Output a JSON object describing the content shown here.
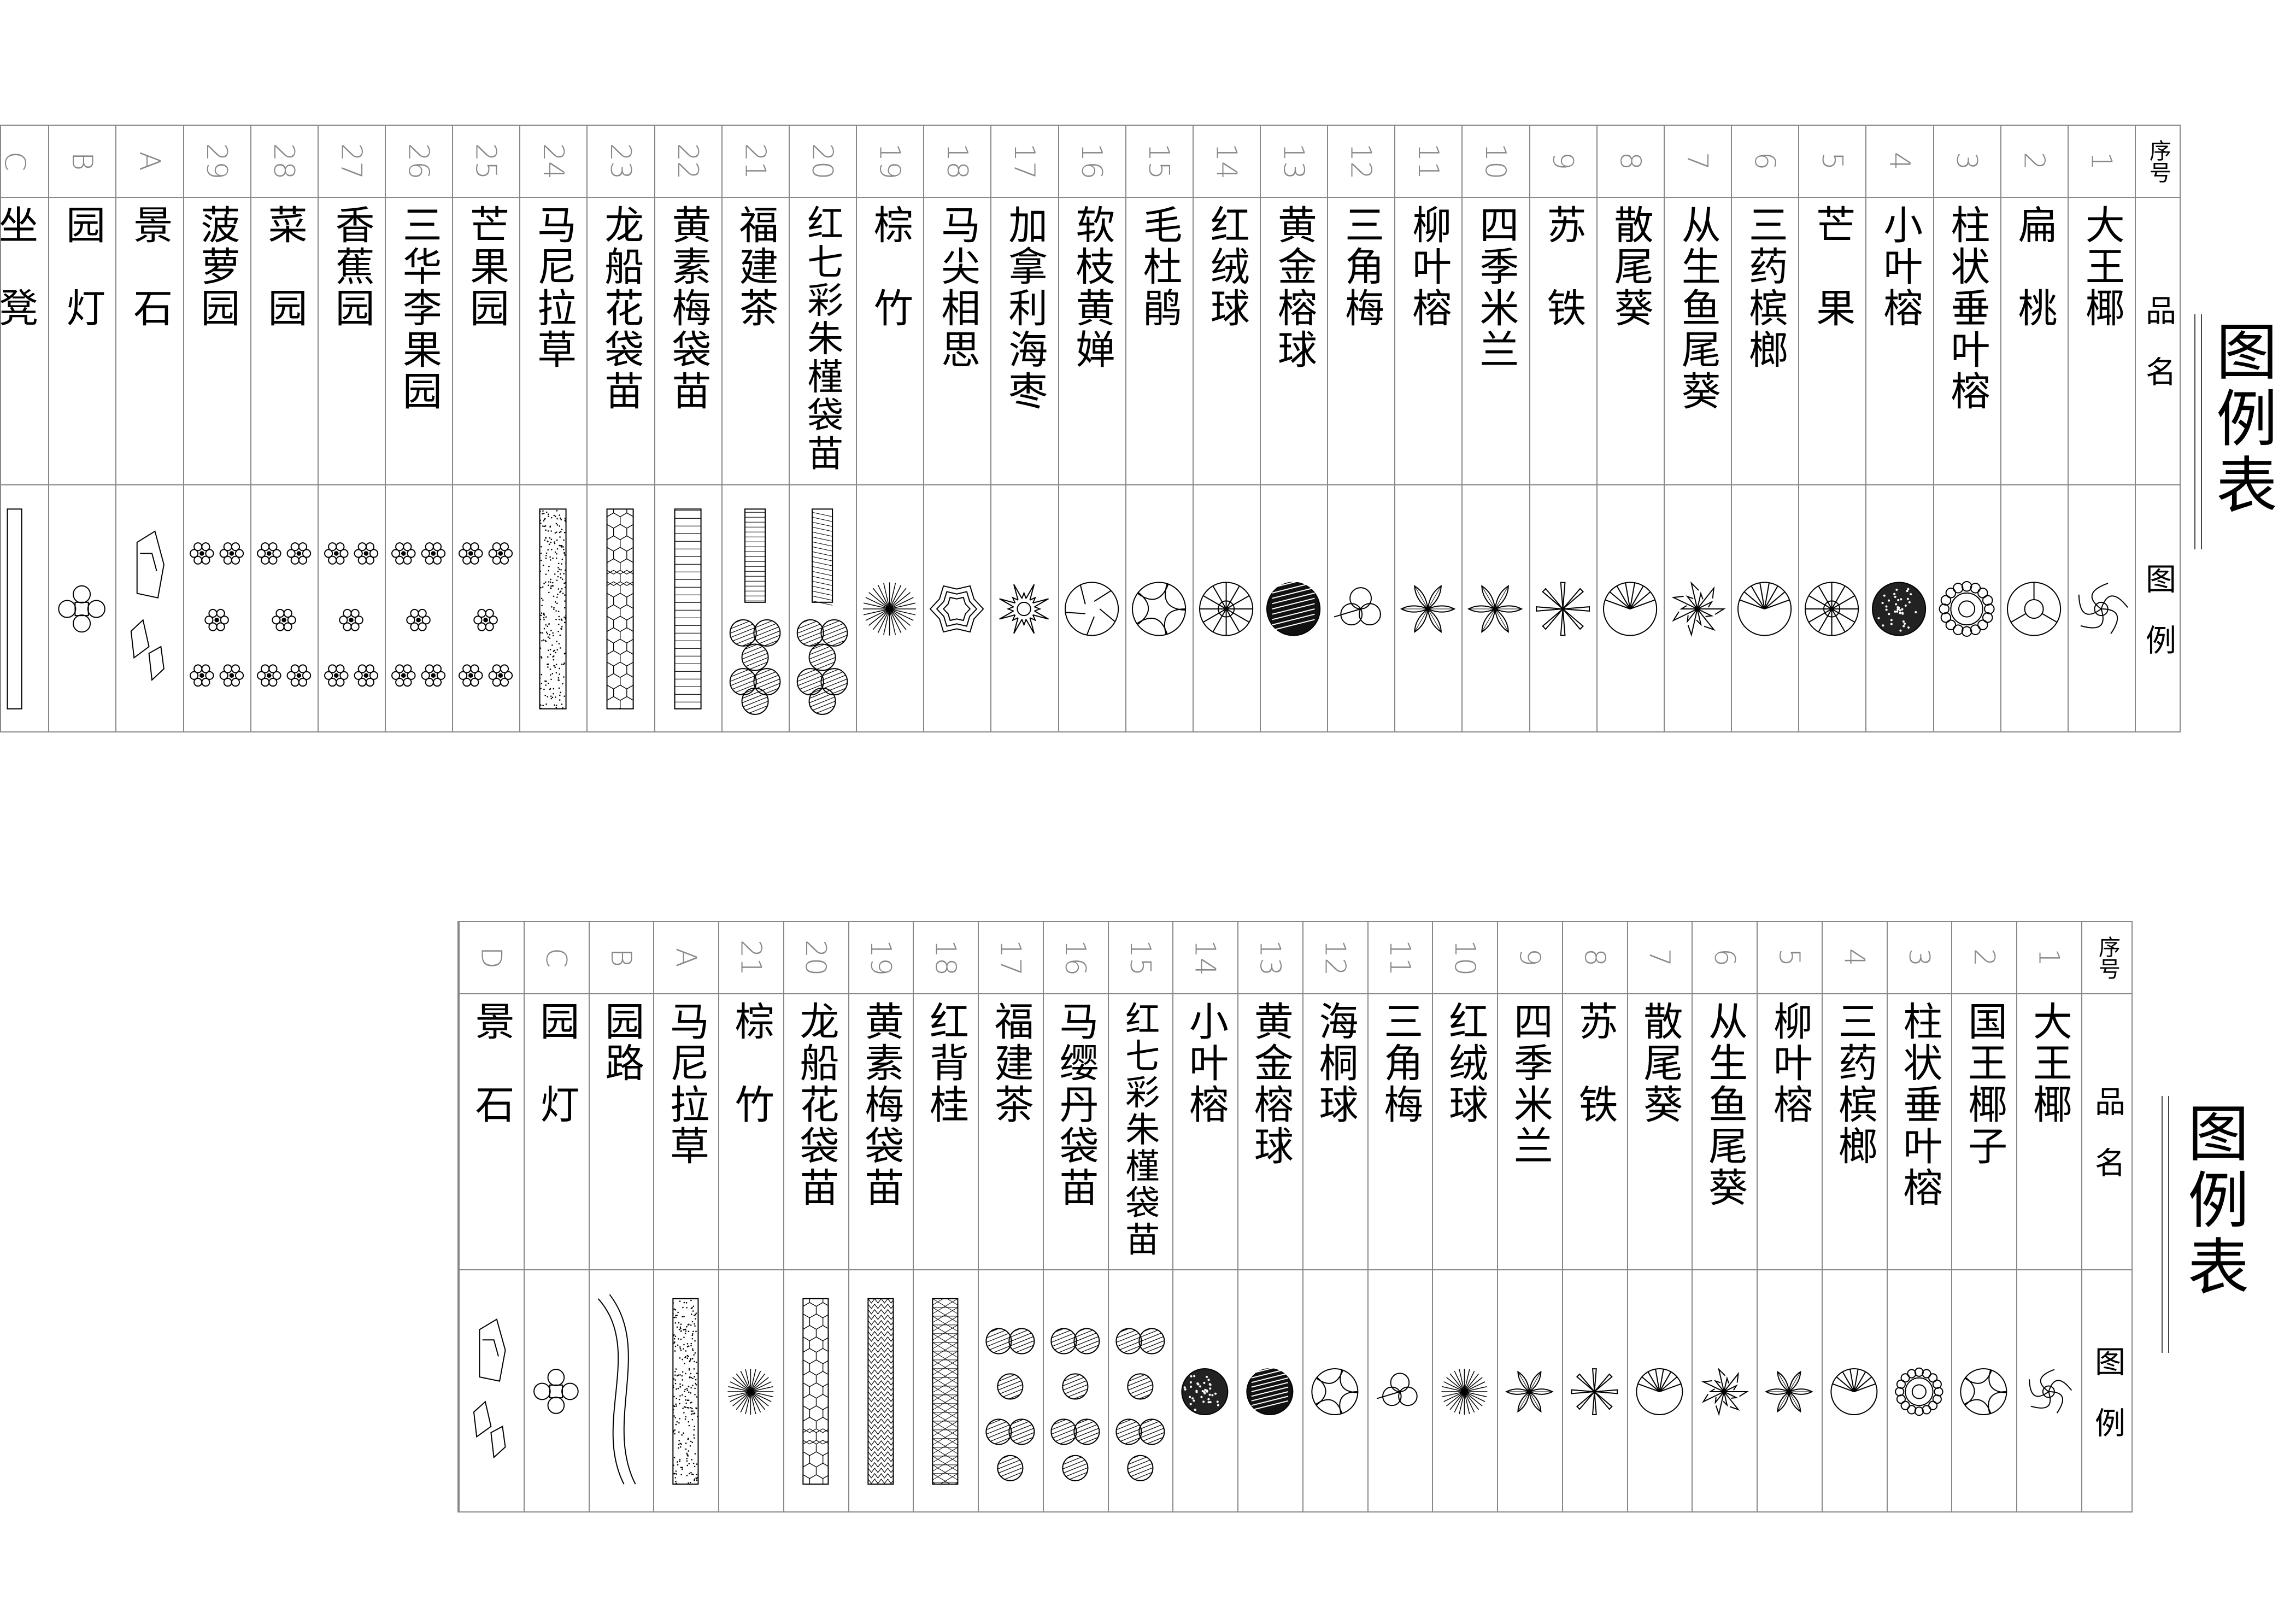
{
  "table1": {
    "title": "图例表",
    "headers": {
      "num": "序号",
      "name": "品　名",
      "symbol": "图　例"
    },
    "rows": [
      {
        "num": "1",
        "name": "大王椰",
        "icon": "pinwheel-palm-icon"
      },
      {
        "num": "2",
        "name": "扁　桃",
        "icon": "three-lobe-circle-icon"
      },
      {
        "num": "3",
        "name": "柱状垂叶榕",
        "icon": "scalloped-circle-icon"
      },
      {
        "num": "4",
        "name": "小叶榕",
        "icon": "stipple-circle-icon"
      },
      {
        "num": "5",
        "name": "芒　果",
        "icon": "star-circle-icon"
      },
      {
        "num": "6",
        "name": "三药槟榔",
        "icon": "fan-circle-icon"
      },
      {
        "num": "7",
        "name": "从生鱼尾葵",
        "icon": "spiky-shrub-icon"
      },
      {
        "num": "8",
        "name": "散尾葵",
        "icon": "fan-circle-icon"
      },
      {
        "num": "9",
        "name": "苏　铁",
        "icon": "asterisk-icon"
      },
      {
        "num": "10",
        "name": "四季米兰",
        "icon": "leaf-star-icon"
      },
      {
        "num": "11",
        "name": "柳叶榕",
        "icon": "leaf-star-icon"
      },
      {
        "num": "12",
        "name": "三角梅",
        "icon": "trefoil-icon"
      },
      {
        "num": "13",
        "name": "黄金榕球",
        "icon": "dark-hatched-circle-icon"
      },
      {
        "num": "14",
        "name": "红绒球",
        "icon": "star-circle-icon"
      },
      {
        "num": "15",
        "name": "毛杜鹃",
        "icon": "swirl-circle-icon"
      },
      {
        "num": "16",
        "name": "软枝黄婵",
        "icon": "segment-circle-icon"
      },
      {
        "num": "17",
        "name": "加拿利海枣",
        "icon": "sunburst-icon"
      },
      {
        "num": "18",
        "name": "马尖相思",
        "icon": "zigzag-shrub-icon"
      },
      {
        "num": "19",
        "name": "棕　竹",
        "icon": "radial-lines-icon"
      },
      {
        "num": "20",
        "name": "红七彩朱槿袋苗",
        "icon": "crosshatch-strip-cloud-icon"
      },
      {
        "num": "21",
        "name": "福建茶",
        "icon": "zigzag-strip-cloud-icon"
      },
      {
        "num": "22",
        "name": "黄素梅袋苗",
        "icon": "weave-bed-icon"
      },
      {
        "num": "23",
        "name": "龙船花袋苗",
        "icon": "hex-bed-icon"
      },
      {
        "num": "24",
        "name": "马尼拉草",
        "icon": "dotted-bed-icon"
      },
      {
        "num": "25",
        "name": "芒果园",
        "icon": "flower-cluster-icon"
      },
      {
        "num": "26",
        "name": "三华李果园",
        "icon": "flower-cluster-icon"
      },
      {
        "num": "27",
        "name": "香蕉园",
        "icon": "flower-cluster-icon"
      },
      {
        "num": "28",
        "name": "菜　园",
        "icon": "flower-cluster-icon"
      },
      {
        "num": "29",
        "name": "菠萝园",
        "icon": "flower-cluster-icon"
      },
      {
        "num": "A",
        "name": "景　石",
        "icon": "rocks-icon"
      },
      {
        "num": "B",
        "name": "园　灯",
        "icon": "garden-lamp-icon"
      },
      {
        "num": "C",
        "name": "坐　凳",
        "icon": "bench-icon"
      }
    ]
  },
  "table2": {
    "title": "图例表",
    "headers": {
      "num": "序号",
      "name": "品　名",
      "symbol": "图　例"
    },
    "rows": [
      {
        "num": "1",
        "name": "大王椰",
        "icon": "pinwheel-palm-icon"
      },
      {
        "num": "2",
        "name": "国王椰子",
        "icon": "swirl-circle-icon"
      },
      {
        "num": "3",
        "name": "柱状垂叶榕",
        "icon": "scalloped-circle-icon"
      },
      {
        "num": "4",
        "name": "三药槟榔",
        "icon": "fan-circle-icon"
      },
      {
        "num": "5",
        "name": "柳叶榕",
        "icon": "leaf-star-icon"
      },
      {
        "num": "6",
        "name": "从生鱼尾葵",
        "icon": "spiky-shrub-icon"
      },
      {
        "num": "7",
        "name": "散尾葵",
        "icon": "fan-circle-icon"
      },
      {
        "num": "8",
        "name": "苏　铁",
        "icon": "asterisk-icon"
      },
      {
        "num": "9",
        "name": "四季米兰",
        "icon": "leaf-star-icon"
      },
      {
        "num": "10",
        "name": "红绒球",
        "icon": "radial-lines-icon"
      },
      {
        "num": "11",
        "name": "三角梅",
        "icon": "trefoil-icon"
      },
      {
        "num": "12",
        "name": "海桐球",
        "icon": "swirl-circle-icon"
      },
      {
        "num": "13",
        "name": "黄金榕球",
        "icon": "dark-hatched-circle-icon"
      },
      {
        "num": "14",
        "name": "小叶榕",
        "icon": "stipple-circle-icon"
      },
      {
        "num": "15",
        "name": "红七彩朱槿袋苗",
        "icon": "hatched-cloud-icon"
      },
      {
        "num": "16",
        "name": "马缨丹袋苗",
        "icon": "hatched-cloud-icon"
      },
      {
        "num": "17",
        "name": "福建茶",
        "icon": "hatched-cloud-icon"
      },
      {
        "num": "18",
        "name": "红背桂",
        "icon": "triangle-bed-icon"
      },
      {
        "num": "19",
        "name": "黄素梅袋苗",
        "icon": "zigzag-bed-icon"
      },
      {
        "num": "20",
        "name": "龙船花袋苗",
        "icon": "hex-bed-icon"
      },
      {
        "num": "21",
        "name": "棕　竹",
        "icon": "radial-lines-icon"
      },
      {
        "num": "A",
        "name": "马尼拉草",
        "icon": "dotted-bed-icon"
      },
      {
        "num": "B",
        "name": "园路",
        "icon": "path-curves-icon"
      },
      {
        "num": "C",
        "name": "园　灯",
        "icon": "garden-lamp-icon"
      },
      {
        "num": "D",
        "name": "景　石",
        "icon": "rocks-icon"
      }
    ]
  }
}
